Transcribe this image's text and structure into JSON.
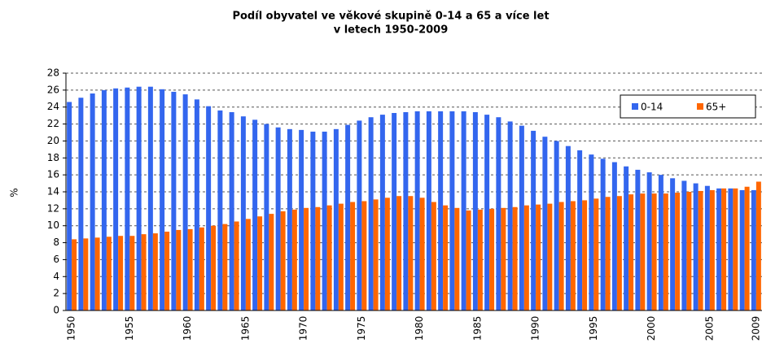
{
  "chart_data": {
    "type": "bar",
    "title": [
      "Podíl obyvatel ve věkové skupině 0-14 a 65 a více let",
      "v letech 1950-2009"
    ],
    "y_label": "%",
    "categories": [
      "1950",
      null,
      null,
      null,
      null,
      "1955",
      null,
      null,
      null,
      null,
      "1960",
      null,
      null,
      null,
      null,
      "1965",
      null,
      null,
      null,
      null,
      "1970",
      null,
      null,
      null,
      null,
      "1975",
      null,
      null,
      null,
      null,
      "1980",
      null,
      null,
      null,
      null,
      "1985",
      null,
      null,
      null,
      null,
      "1990",
      null,
      null,
      null,
      null,
      "1995",
      null,
      null,
      null,
      null,
      "2000",
      null,
      null,
      null,
      null,
      "2005",
      null,
      null,
      null,
      "2009"
    ],
    "series": [
      {
        "name": "0-14",
        "color": "#3366ee",
        "values": [
          24.6,
          25.1,
          25.6,
          26.0,
          26.2,
          26.3,
          26.4,
          26.4,
          26.1,
          25.8,
          25.5,
          24.9,
          24.1,
          23.6,
          23.4,
          22.9,
          22.5,
          22.0,
          21.6,
          21.4,
          21.3,
          21.1,
          21.1,
          21.4,
          21.9,
          22.4,
          22.8,
          23.1,
          23.3,
          23.4,
          23.5,
          23.5,
          23.5,
          23.5,
          23.5,
          23.4,
          23.1,
          22.8,
          22.3,
          21.8,
          21.2,
          20.5,
          20.0,
          19.4,
          18.9,
          18.4,
          17.9,
          17.5,
          17.0,
          16.6,
          16.3,
          16.0,
          15.6,
          15.3,
          15.0,
          14.7,
          14.4,
          14.4,
          14.2,
          14.2
        ]
      },
      {
        "name": "65+",
        "color": "#ff6600",
        "values": [
          8.4,
          8.5,
          8.6,
          8.7,
          8.8,
          8.8,
          9.0,
          9.1,
          9.3,
          9.5,
          9.6,
          9.8,
          10.0,
          10.2,
          10.5,
          10.8,
          11.1,
          11.4,
          11.7,
          11.9,
          12.1,
          12.2,
          12.4,
          12.6,
          12.8,
          12.9,
          13.1,
          13.3,
          13.5,
          13.5,
          13.3,
          12.8,
          12.4,
          12.1,
          11.8,
          11.9,
          12.0,
          12.1,
          12.2,
          12.4,
          12.5,
          12.6,
          12.8,
          12.9,
          13.0,
          13.2,
          13.4,
          13.5,
          13.7,
          13.8,
          13.8,
          13.8,
          13.9,
          14.0,
          14.1,
          14.2,
          14.4,
          14.4,
          14.6,
          15.2
        ]
      }
    ],
    "ylim": [
      0,
      28
    ],
    "yticks": [
      0,
      2,
      4,
      6,
      8,
      10,
      12,
      14,
      16,
      18,
      20,
      22,
      24,
      26,
      28
    ],
    "grid": true,
    "legend": "top-right"
  }
}
